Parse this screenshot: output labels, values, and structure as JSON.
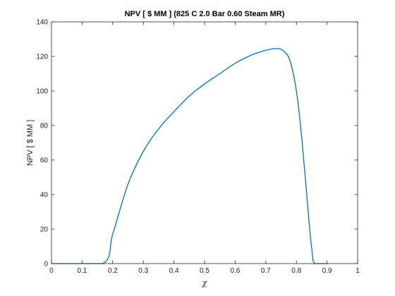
{
  "chart_data": {
    "type": "line",
    "title": "NPV [ $ MM ] (825 C 2.0 Bar 0.60 Steam MR)",
    "xlabel": "χ",
    "ylabel": "NPV [ $ MM ]",
    "xlim": [
      0,
      1
    ],
    "ylim": [
      0,
      140
    ],
    "xticks": [
      0,
      0.1,
      0.2,
      0.3,
      0.4,
      0.5,
      0.6,
      0.7,
      0.8,
      0.9,
      1
    ],
    "xtick_labels": [
      "0",
      "0.1",
      "0.2",
      "0.3",
      "0.4",
      "0.5",
      "0.6",
      "0.7",
      "0.8",
      "0.9",
      "1"
    ],
    "yticks": [
      0,
      20,
      40,
      60,
      80,
      100,
      120,
      140
    ],
    "ytick_labels": [
      "0",
      "20",
      "40",
      "60",
      "80",
      "100",
      "120",
      "140"
    ],
    "grid": false,
    "line_color": "#0072BD",
    "series": [
      {
        "x": [
          0,
          0.167,
          0.2,
          0.25,
          0.3,
          0.35,
          0.4,
          0.45,
          0.5,
          0.55,
          0.6,
          0.65,
          0.7,
          0.73,
          0.75,
          0.77,
          0.78,
          0.79,
          0.8,
          0.81,
          0.82,
          0.83,
          0.84,
          0.85,
          0.86,
          0.9
        ],
        "y": [
          0,
          0,
          17,
          46,
          65,
          78,
          88,
          97,
          104,
          110,
          116,
          120.5,
          123.5,
          124.5,
          124,
          121,
          117,
          110,
          100,
          86,
          68,
          48,
          27,
          9,
          0,
          0
        ]
      }
    ]
  }
}
